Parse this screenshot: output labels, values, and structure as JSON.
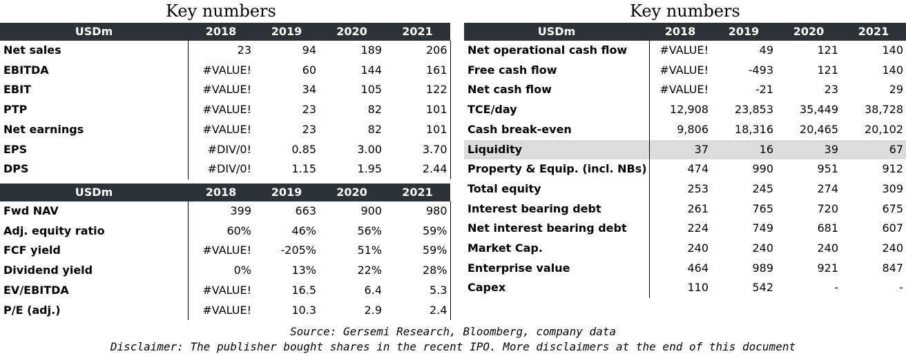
{
  "left": {
    "title": "Key numbers",
    "table1": {
      "header": [
        "USDm",
        "2018",
        "2019",
        "2020",
        "2021"
      ],
      "rows": [
        {
          "label": "Net sales",
          "values": [
            "23",
            "94",
            "189",
            "206"
          ]
        },
        {
          "label": "EBITDA",
          "values": [
            "#VALUE!",
            "60",
            "144",
            "161"
          ]
        },
        {
          "label": "EBIT",
          "values": [
            "#VALUE!",
            "34",
            "105",
            "122"
          ]
        },
        {
          "label": "PTP",
          "values": [
            "#VALUE!",
            "23",
            "82",
            "101"
          ]
        },
        {
          "label": "Net earnings",
          "values": [
            "#VALUE!",
            "23",
            "82",
            "101"
          ]
        },
        {
          "label": "EPS",
          "values": [
            "#DIV/0!",
            "0.85",
            "3.00",
            "3.70"
          ]
        },
        {
          "label": "DPS",
          "values": [
            "#DIV/0!",
            "1.15",
            "1.95",
            "2.44"
          ]
        }
      ]
    },
    "table2": {
      "header": [
        "USDm",
        "2018",
        "2019",
        "2020",
        "2021"
      ],
      "rows": [
        {
          "label": "Fwd NAV",
          "values": [
            "399",
            "663",
            "900",
            "980"
          ]
        },
        {
          "label": "Adj. equity ratio",
          "values": [
            "60%",
            "46%",
            "56%",
            "59%"
          ]
        },
        {
          "label": "FCF yield",
          "values": [
            "#VALUE!",
            "-205%",
            "51%",
            "59%"
          ]
        },
        {
          "label": "Dividend yield",
          "values": [
            "0%",
            "13%",
            "22%",
            "28%"
          ]
        },
        {
          "label": "EV/EBITDA",
          "values": [
            "#VALUE!",
            "16.5",
            "6.4",
            "5.3"
          ]
        },
        {
          "label": "P/E (adj.)",
          "values": [
            "#VALUE!",
            "10.3",
            "2.9",
            "2.4"
          ]
        }
      ]
    }
  },
  "right": {
    "title": "Key numbers",
    "table": {
      "header": [
        "USDm",
        "2018",
        "2019",
        "2020",
        "2021"
      ],
      "rows": [
        {
          "label": "Net operational cash flow",
          "values": [
            "#VALUE!",
            "49",
            "121",
            "140"
          ]
        },
        {
          "label": "Free cash flow",
          "values": [
            "#VALUE!",
            "-493",
            "121",
            "140"
          ]
        },
        {
          "label": "Net cash flow",
          "values": [
            "#VALUE!",
            "-21",
            "23",
            "29"
          ]
        },
        {
          "label": "TCE/day",
          "values": [
            "12,908",
            "23,853",
            "35,449",
            "38,728"
          ]
        },
        {
          "label": "Cash break-even",
          "values": [
            "9,806",
            "18,316",
            "20,465",
            "20,102"
          ]
        },
        {
          "label": "Liquidity",
          "values": [
            "37",
            "16",
            "39",
            "67"
          ]
        },
        {
          "label": "Property & Equip. (incl. NBs)",
          "values": [
            "474",
            "990",
            "951",
            "912"
          ]
        },
        {
          "label": "Total equity",
          "values": [
            "253",
            "245",
            "274",
            "309"
          ]
        },
        {
          "label": "Interest bearing debt",
          "values": [
            "261",
            "765",
            "720",
            "675"
          ]
        },
        {
          "label": "Net interest bearing debt",
          "values": [
            "224",
            "749",
            "681",
            "607"
          ]
        },
        {
          "label": "Market Cap.",
          "values": [
            "240",
            "240",
            "240",
            "240"
          ]
        },
        {
          "label": "Enterprise value",
          "values": [
            "464",
            "989",
            "921",
            "847"
          ]
        },
        {
          "label": "Capex",
          "values": [
            "110",
            "542",
            "-",
            "-"
          ]
        }
      ]
    }
  },
  "footer": {
    "source": "Source: Gersemi Research, Bloomberg, company data",
    "disclaimer": "Disclaimer: The publisher bought shares in the recent IPO. More disclaimers at the end of this document"
  },
  "colors": {
    "header_bg": "#2d3238",
    "highlight_row_bg": "#dcdcdc"
  }
}
